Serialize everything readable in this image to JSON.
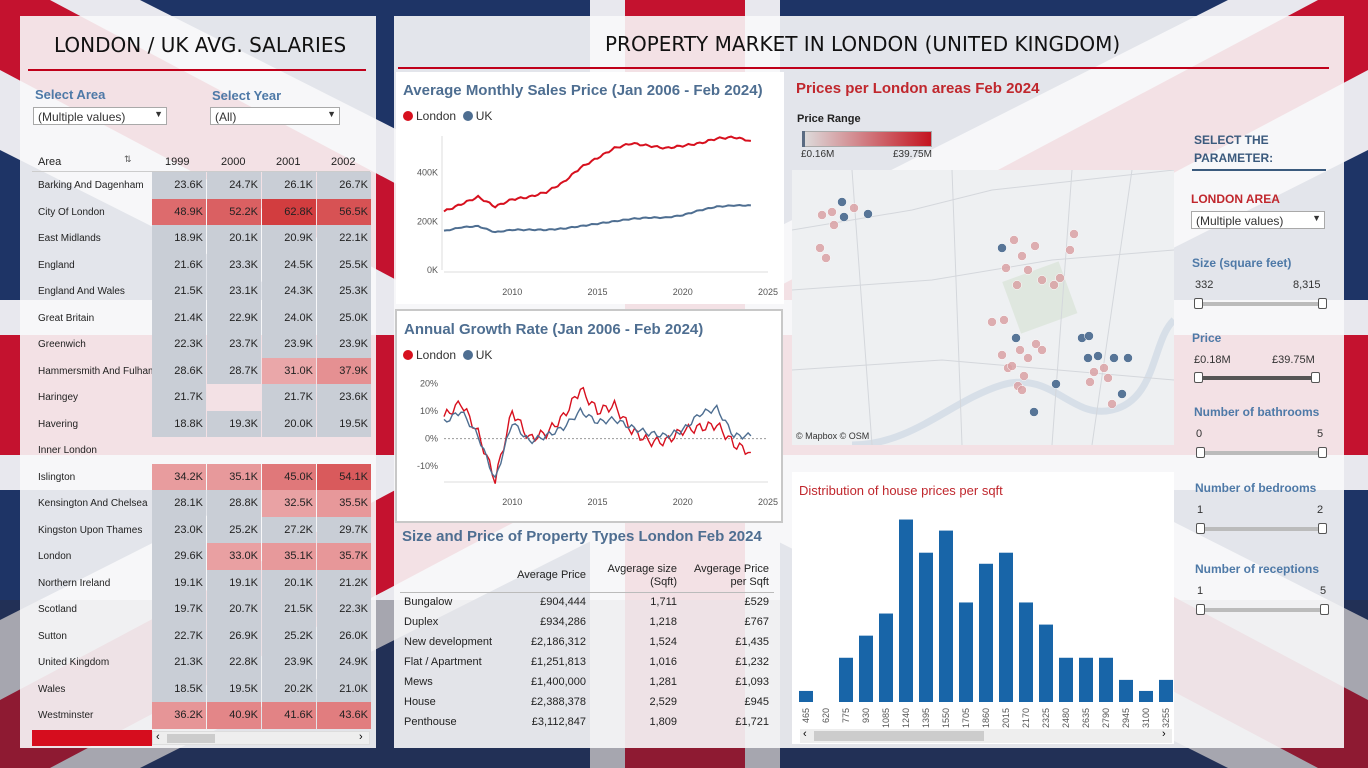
{
  "left": {
    "title": "LONDON / UK AVG. SALARIES",
    "select_area_label": "Select Area",
    "select_area_value": "(Multiple values)",
    "select_year_label": "Select Year",
    "select_year_value": "(All)",
    "columns": [
      "Area",
      "1999",
      "2000",
      "2001",
      "2002"
    ],
    "rows": [
      {
        "area": "Barking And Dagenham",
        "v": [
          "23.6K",
          "24.7K",
          "26.1K",
          "26.7K"
        ]
      },
      {
        "area": "City Of London",
        "v": [
          "48.9K",
          "52.2K",
          "62.8K",
          "56.5K"
        ]
      },
      {
        "area": "East Midlands",
        "v": [
          "18.9K",
          "20.1K",
          "20.9K",
          "22.1K"
        ]
      },
      {
        "area": "England",
        "v": [
          "21.6K",
          "23.3K",
          "24.5K",
          "25.5K"
        ]
      },
      {
        "area": "England And Wales",
        "v": [
          "21.5K",
          "23.1K",
          "24.3K",
          "25.3K"
        ]
      },
      {
        "area": "Great Britain",
        "v": [
          "21.4K",
          "22.9K",
          "24.0K",
          "25.0K"
        ]
      },
      {
        "area": "Greenwich",
        "v": [
          "22.3K",
          "23.7K",
          "23.9K",
          "23.9K"
        ]
      },
      {
        "area": "Hammersmith And Fulham",
        "v": [
          "28.6K",
          "28.7K",
          "31.0K",
          "37.9K"
        ]
      },
      {
        "area": "Haringey",
        "v": [
          "21.7K",
          "",
          "21.7K",
          "23.6K"
        ]
      },
      {
        "area": "Havering",
        "v": [
          "18.8K",
          "19.3K",
          "20.0K",
          "19.5K"
        ]
      },
      {
        "area": "Inner London",
        "v": [
          "",
          "",
          "",
          ""
        ]
      },
      {
        "area": "Islington",
        "v": [
          "34.2K",
          "35.1K",
          "45.0K",
          "54.1K"
        ]
      },
      {
        "area": "Kensington And Chelsea",
        "v": [
          "28.1K",
          "28.8K",
          "32.5K",
          "35.5K"
        ]
      },
      {
        "area": "Kingston Upon Thames",
        "v": [
          "23.0K",
          "25.2K",
          "27.2K",
          "29.7K"
        ]
      },
      {
        "area": "London",
        "v": [
          "29.6K",
          "33.0K",
          "35.1K",
          "35.7K"
        ]
      },
      {
        "area": "Northern Ireland",
        "v": [
          "19.1K",
          "19.1K",
          "20.1K",
          "21.2K"
        ]
      },
      {
        "area": "Scotland",
        "v": [
          "19.7K",
          "20.7K",
          "21.5K",
          "22.3K"
        ]
      },
      {
        "area": "Sutton",
        "v": [
          "22.7K",
          "26.9K",
          "25.2K",
          "26.0K"
        ]
      },
      {
        "area": "United Kingdom",
        "v": [
          "21.3K",
          "22.8K",
          "23.9K",
          "24.9K"
        ]
      },
      {
        "area": "Wales",
        "v": [
          "18.5K",
          "19.5K",
          "20.2K",
          "21.0K"
        ]
      },
      {
        "area": "Westminster",
        "v": [
          "36.2K",
          "40.9K",
          "41.6K",
          "43.6K"
        ]
      }
    ]
  },
  "main_title": "PROPERTY MARKET IN LONDON (UNITED KINGDOM)",
  "sales_chart": {
    "title": "Average Monthly Sales Price (Jan 2006 - Feb 2024)",
    "legend": [
      "London",
      "UK"
    ],
    "y_ticks": [
      "400K",
      "200K",
      "0K"
    ],
    "x_ticks": [
      "2010",
      "2015",
      "2020",
      "2025"
    ]
  },
  "growth_chart": {
    "title": "Annual Growth Rate (Jan 2006 -  Feb 2024)",
    "legend": [
      "London",
      "UK"
    ],
    "y_ticks": [
      "20%",
      "10%",
      "0%",
      "-10%"
    ],
    "x_ticks": [
      "2010",
      "2015",
      "2020",
      "2025"
    ]
  },
  "property_table": {
    "title": "Size and Price of Property Types London Feb 2024",
    "headers": [
      "Average  Price",
      "Avgerage size (Sqft)",
      "Avgerage Price per Sqft"
    ],
    "rows": [
      {
        "type": "Bungalow",
        "price": "£904,444",
        "size": "1,711",
        "psf": "£529"
      },
      {
        "type": "Duplex",
        "price": "£934,286",
        "size": "1,218",
        "psf": "£767"
      },
      {
        "type": "New development",
        "price": "£2,186,312",
        "size": "1,524",
        "psf": "£1,435"
      },
      {
        "type": "Flat / Apartment",
        "price": "£1,251,813",
        "size": "1,016",
        "psf": "£1,232"
      },
      {
        "type": "Mews",
        "price": "£1,400,000",
        "size": "1,281",
        "psf": "£1,093"
      },
      {
        "type": "House",
        "price": "£2,388,378",
        "size": "2,529",
        "psf": "£945"
      },
      {
        "type": "Penthouse",
        "price": "£3,112,847",
        "size": "1,809",
        "psf": "£1,721"
      }
    ]
  },
  "map": {
    "title": "Prices per London areas Feb 2024",
    "legend_title": "Price Range",
    "min": "£0.16M",
    "max": "£39.75M",
    "credit": "© Mapbox © OSM"
  },
  "histogram": {
    "title": "Distribution of house prices per sqft"
  },
  "params": {
    "header": "SELECT THE PARAMETER:",
    "area_label": "LONDON AREA",
    "area_value": "(Multiple values)",
    "size_label": "Size (square feet)",
    "size_min": "332",
    "size_max": "8,315",
    "price_label": "Price",
    "price_min": "£0.18M",
    "price_max": "£39.75M",
    "bath_label": "Number of bathrooms",
    "bath_min": "0",
    "bath_max": "5",
    "bed_label": "Number of bedrooms",
    "bed_min": "1",
    "bed_max": "2",
    "rec_label": "Number of receptions",
    "rec_min": "1",
    "rec_max": "5"
  },
  "chart_data": [
    {
      "type": "line",
      "title": "Average Monthly Sales Price (Jan 2006 - Feb 2024)",
      "x": [
        2006,
        2007,
        2008,
        2009,
        2010,
        2011,
        2012,
        2013,
        2014,
        2015,
        2016,
        2017,
        2018,
        2019,
        2020,
        2021,
        2022,
        2023,
        2024
      ],
      "series": [
        {
          "name": "London",
          "values": [
            240000,
            270000,
            300000,
            260000,
            290000,
            300000,
            320000,
            360000,
            420000,
            460000,
            500000,
            520000,
            510000,
            500000,
            510000,
            520000,
            540000,
            545000,
            530000
          ]
        },
        {
          "name": "UK",
          "values": [
            160000,
            175000,
            180000,
            155000,
            165000,
            165000,
            165000,
            170000,
            180000,
            190000,
            200000,
            210000,
            215000,
            215000,
            225000,
            245000,
            260000,
            265000,
            265000
          ]
        }
      ],
      "ylim": [
        0,
        550000
      ],
      "xlim": [
        2006,
        2025
      ]
    },
    {
      "type": "line",
      "title": "Annual Growth Rate (Jan 2006 -  Feb 2024)",
      "x": [
        2006,
        2007,
        2008,
        2009,
        2010,
        2011,
        2012,
        2013,
        2014,
        2015,
        2016,
        2017,
        2018,
        2019,
        2020,
        2021,
        2022,
        2023,
        2024
      ],
      "series": [
        {
          "name": "London",
          "values": [
            8,
            13,
            2,
            -15,
            10,
            0,
            2,
            8,
            18,
            10,
            12,
            3,
            -1,
            -1,
            3,
            4,
            5,
            -2,
            -5
          ]
        },
        {
          "name": "UK",
          "values": [
            6,
            10,
            1,
            -15,
            6,
            -1,
            1,
            4,
            10,
            6,
            7,
            4,
            2,
            1,
            3,
            9,
            11,
            1,
            1
          ]
        }
      ],
      "ylim": [
        -15,
        22
      ],
      "xlim": [
        2006,
        2025
      ]
    },
    {
      "type": "bar",
      "title": "Distribution of house prices per sqft",
      "categories": [
        "465",
        "620",
        "775",
        "930",
        "1085",
        "1240",
        "1395",
        "1550",
        "1705",
        "1860",
        "2015",
        "2170",
        "2325",
        "2480",
        "2635",
        "2790",
        "2945",
        "3100",
        "3255"
      ],
      "values": [
        2,
        0,
        8,
        12,
        16,
        33,
        27,
        31,
        18,
        25,
        27,
        18,
        14,
        8,
        8,
        8,
        4,
        2,
        4
      ]
    }
  ]
}
